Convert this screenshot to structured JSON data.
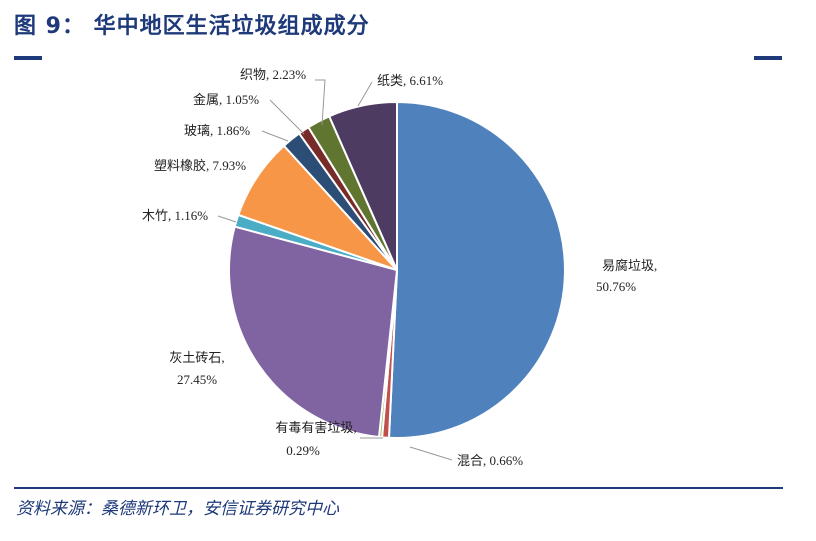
{
  "header": {
    "title": "图 9：  华中地区生活垃圾组成成分"
  },
  "footer": {
    "source": "资料来源：桑德新环卫，安信证券研究中心"
  },
  "colors": {
    "brand": "#1f3a7a"
  },
  "chart_data": {
    "type": "pie",
    "title": "",
    "slices": [
      {
        "label": "易腐垃圾",
        "value": 50.76,
        "value_label": "50.76%",
        "color": "#4f81bd"
      },
      {
        "label": "混合",
        "value": 0.66,
        "value_label": "0.66%",
        "color": "#c0504d"
      },
      {
        "label": "有毒有害垃圾",
        "value": 0.29,
        "value_label": "0.29%",
        "color": "#9bbb59"
      },
      {
        "label": "灰土砖石",
        "value": 27.45,
        "value_label": "27.45%",
        "color": "#8064a2"
      },
      {
        "label": "木竹",
        "value": 1.16,
        "value_label": "1.16%",
        "color": "#4bacc6"
      },
      {
        "label": "塑料橡胶",
        "value": 7.93,
        "value_label": "7.93%",
        "color": "#f79646"
      },
      {
        "label": "玻璃",
        "value": 1.86,
        "value_label": "1.86%",
        "color": "#2c4d75"
      },
      {
        "label": "金属",
        "value": 1.05,
        "value_label": "1.05%",
        "color": "#772c2a"
      },
      {
        "label": "织物",
        "value": 2.23,
        "value_label": "2.23%",
        "color": "#5f7530"
      },
      {
        "label": "纸类",
        "value": 6.61,
        "value_label": "6.61%",
        "color": "#4d3b62"
      }
    ]
  }
}
